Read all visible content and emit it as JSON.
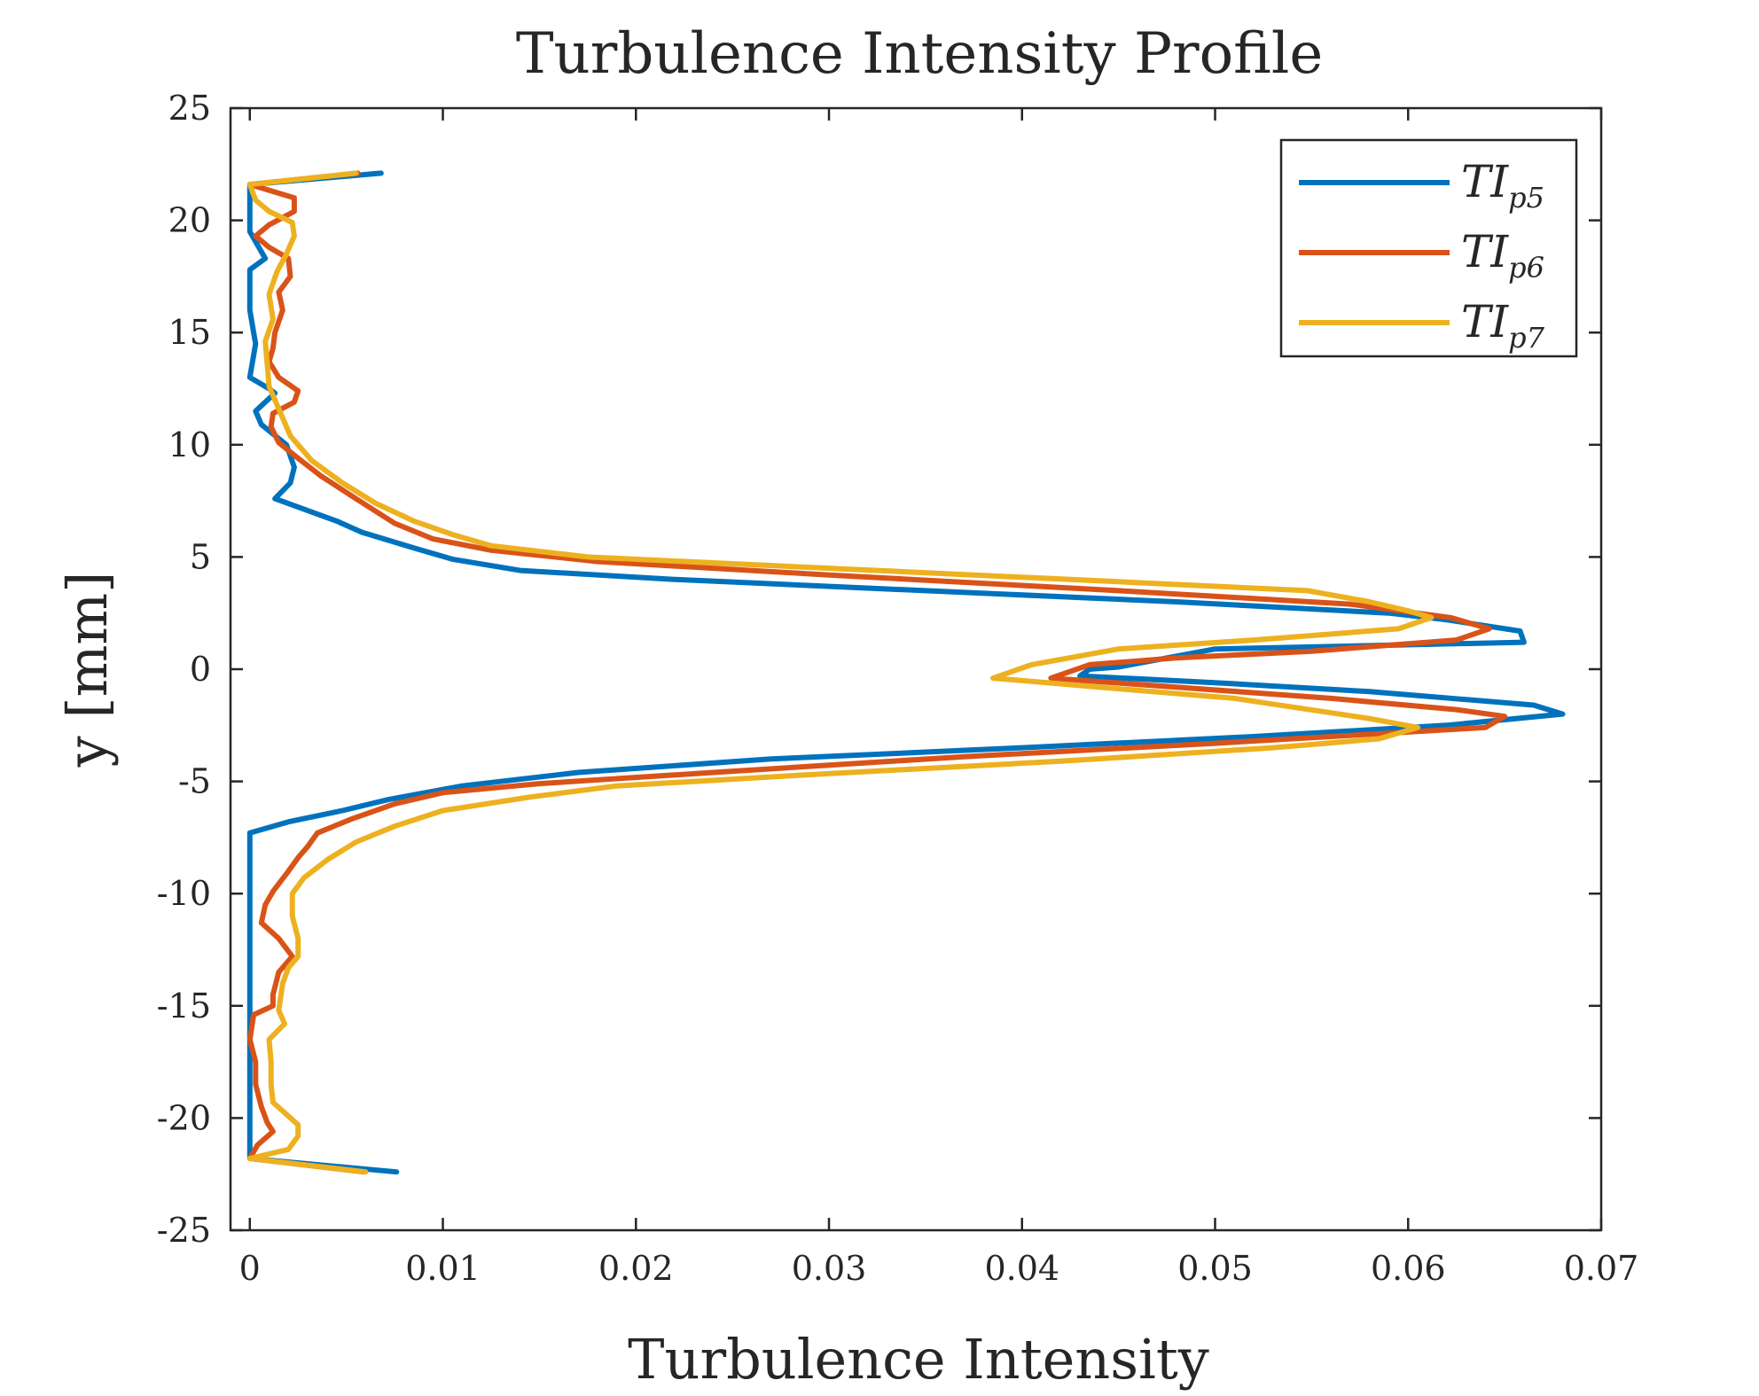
{
  "chart_data": {
    "type": "line",
    "title": "Turbulence Intensity Profile",
    "xlabel": "Turbulence Intensity",
    "ylabel": "y [mm]",
    "xlim": [
      -0.001,
      0.07
    ],
    "ylim": [
      -25,
      25
    ],
    "xticks": [
      0,
      0.01,
      0.02,
      0.03,
      0.04,
      0.05,
      0.06,
      0.07
    ],
    "xtick_labels": [
      "0",
      "0.01",
      "0.02",
      "0.03",
      "0.04",
      "0.05",
      "0.06",
      "0.07"
    ],
    "yticks": [
      25,
      20,
      15,
      10,
      5,
      0,
      -5,
      -10,
      -15,
      -20,
      -25
    ],
    "ytick_labels": [
      "25",
      "20",
      "15",
      "10",
      "5",
      "0",
      "-5",
      "-10",
      "-15",
      "-20",
      "-25"
    ],
    "grid": false,
    "legend_position": "top-right",
    "series": [
      {
        "name": "TI_p5",
        "label_main": "TI",
        "label_sub": "p5",
        "color": "#0072BD",
        "points": [
          [
            0.0068,
            22.1
          ],
          [
            0.0,
            21.6
          ],
          [
            0.0,
            19.5
          ],
          [
            0.0008,
            18.3
          ],
          [
            0.0,
            17.8
          ],
          [
            0.0,
            16.0
          ],
          [
            0.0002,
            15.0
          ],
          [
            0.0003,
            14.5
          ],
          [
            0.0,
            13.0
          ],
          [
            0.001,
            12.5
          ],
          [
            0.0013,
            12.3
          ],
          [
            0.0003,
            11.5
          ],
          [
            0.0006,
            10.9
          ],
          [
            0.0019,
            10.0
          ],
          [
            0.0023,
            9.0
          ],
          [
            0.0021,
            8.3
          ],
          [
            0.0013,
            7.6
          ],
          [
            0.0045,
            6.6
          ],
          [
            0.0058,
            6.1
          ],
          [
            0.0085,
            5.4
          ],
          [
            0.0105,
            4.9
          ],
          [
            0.014,
            4.4
          ],
          [
            0.022,
            4.0
          ],
          [
            0.035,
            3.5
          ],
          [
            0.048,
            3.0
          ],
          [
            0.059,
            2.5
          ],
          [
            0.062,
            2.2
          ],
          [
            0.0658,
            1.7
          ],
          [
            0.066,
            1.2
          ],
          [
            0.05,
            0.9
          ],
          [
            0.045,
            0.1
          ],
          [
            0.0435,
            0.0
          ],
          [
            0.043,
            -0.3
          ],
          [
            0.05,
            -0.6
          ],
          [
            0.058,
            -1.0
          ],
          [
            0.0665,
            -1.6
          ],
          [
            0.068,
            -2.0
          ],
          [
            0.062,
            -2.5
          ],
          [
            0.052,
            -3.0
          ],
          [
            0.04,
            -3.5
          ],
          [
            0.027,
            -4.0
          ],
          [
            0.017,
            -4.6
          ],
          [
            0.011,
            -5.2
          ],
          [
            0.0072,
            -5.8
          ],
          [
            0.0048,
            -6.3
          ],
          [
            0.002,
            -6.8
          ],
          [
            0.0,
            -7.3
          ],
          [
            0.0,
            -12.0
          ],
          [
            0.0,
            -18.0
          ],
          [
            0.0,
            -21.8
          ],
          [
            0.0076,
            -22.4
          ]
        ]
      },
      {
        "name": "TI_p6",
        "label_main": "TI",
        "label_sub": "p6",
        "color": "#D95319",
        "points": [
          [
            0.0056,
            22.1
          ],
          [
            0.0,
            21.6
          ],
          [
            0.0023,
            21.0
          ],
          [
            0.0023,
            20.4
          ],
          [
            0.001,
            19.8
          ],
          [
            0.0003,
            19.3
          ],
          [
            0.001,
            18.8
          ],
          [
            0.002,
            18.3
          ],
          [
            0.0021,
            17.5
          ],
          [
            0.0015,
            16.8
          ],
          [
            0.0017,
            16.0
          ],
          [
            0.0013,
            15.0
          ],
          [
            0.0012,
            14.3
          ],
          [
            0.001,
            13.7
          ],
          [
            0.0015,
            13.0
          ],
          [
            0.0025,
            12.4
          ],
          [
            0.0023,
            11.9
          ],
          [
            0.0012,
            11.4
          ],
          [
            0.0011,
            10.8
          ],
          [
            0.0015,
            10.1
          ],
          [
            0.0025,
            9.4
          ],
          [
            0.0037,
            8.6
          ],
          [
            0.0055,
            7.6
          ],
          [
            0.0075,
            6.5
          ],
          [
            0.0095,
            5.8
          ],
          [
            0.0125,
            5.3
          ],
          [
            0.018,
            4.8
          ],
          [
            0.03,
            4.2
          ],
          [
            0.045,
            3.5
          ],
          [
            0.057,
            2.9
          ],
          [
            0.0622,
            2.3
          ],
          [
            0.0642,
            1.8
          ],
          [
            0.0625,
            1.3
          ],
          [
            0.055,
            0.8
          ],
          [
            0.048,
            0.5
          ],
          [
            0.0435,
            0.2
          ],
          [
            0.0415,
            -0.4
          ],
          [
            0.048,
            -0.8
          ],
          [
            0.056,
            -1.3
          ],
          [
            0.0625,
            -1.8
          ],
          [
            0.065,
            -2.1
          ],
          [
            0.064,
            -2.6
          ],
          [
            0.05,
            -3.3
          ],
          [
            0.037,
            -3.9
          ],
          [
            0.024,
            -4.6
          ],
          [
            0.015,
            -5.1
          ],
          [
            0.01,
            -5.5
          ],
          [
            0.0075,
            -6.0
          ],
          [
            0.0052,
            -6.7
          ],
          [
            0.0035,
            -7.3
          ],
          [
            0.003,
            -7.9
          ],
          [
            0.0025,
            -8.4
          ],
          [
            0.002,
            -9.0
          ],
          [
            0.0012,
            -9.9
          ],
          [
            0.0008,
            -10.5
          ],
          [
            0.0006,
            -11.3
          ],
          [
            0.0015,
            -12.0
          ],
          [
            0.0022,
            -12.8
          ],
          [
            0.0015,
            -13.5
          ],
          [
            0.0012,
            -14.5
          ],
          [
            0.0012,
            -15.0
          ],
          [
            0.0002,
            -15.4
          ],
          [
            0.0,
            -16.5
          ],
          [
            0.0003,
            -17.5
          ],
          [
            0.0003,
            -18.5
          ],
          [
            0.0006,
            -19.5
          ],
          [
            0.0009,
            -20.2
          ],
          [
            0.0012,
            -20.6
          ],
          [
            0.0004,
            -21.2
          ],
          [
            0.0,
            -21.8
          ],
          [
            0.0059,
            -22.4
          ]
        ]
      },
      {
        "name": "TI_p7",
        "label_main": "TI",
        "label_sub": "p7",
        "color": "#EDB120",
        "points": [
          [
            0.0055,
            22.1
          ],
          [
            0.0,
            21.6
          ],
          [
            0.0003,
            20.9
          ],
          [
            0.001,
            20.4
          ],
          [
            0.0022,
            19.9
          ],
          [
            0.0023,
            19.3
          ],
          [
            0.0019,
            18.5
          ],
          [
            0.0014,
            17.7
          ],
          [
            0.001,
            16.7
          ],
          [
            0.0012,
            15.6
          ],
          [
            0.0008,
            14.6
          ],
          [
            0.0009,
            13.6
          ],
          [
            0.001,
            12.6
          ],
          [
            0.0015,
            11.6
          ],
          [
            0.0021,
            10.4
          ],
          [
            0.0032,
            9.3
          ],
          [
            0.0048,
            8.3
          ],
          [
            0.0065,
            7.4
          ],
          [
            0.0085,
            6.6
          ],
          [
            0.0105,
            6.0
          ],
          [
            0.0125,
            5.5
          ],
          [
            0.0175,
            5.0
          ],
          [
            0.03,
            4.5
          ],
          [
            0.045,
            3.9
          ],
          [
            0.0548,
            3.5
          ],
          [
            0.058,
            3.0
          ],
          [
            0.06,
            2.6
          ],
          [
            0.0612,
            2.3
          ],
          [
            0.0595,
            1.8
          ],
          [
            0.052,
            1.3
          ],
          [
            0.045,
            0.9
          ],
          [
            0.0405,
            0.2
          ],
          [
            0.0385,
            -0.4
          ],
          [
            0.044,
            -0.8
          ],
          [
            0.051,
            -1.3
          ],
          [
            0.058,
            -2.2
          ],
          [
            0.0605,
            -2.6
          ],
          [
            0.0585,
            -3.1
          ],
          [
            0.053,
            -3.5
          ],
          [
            0.042,
            -4.1
          ],
          [
            0.029,
            -4.7
          ],
          [
            0.019,
            -5.2
          ],
          [
            0.0145,
            -5.7
          ],
          [
            0.01,
            -6.3
          ],
          [
            0.0075,
            -7.0
          ],
          [
            0.0055,
            -7.7
          ],
          [
            0.004,
            -8.5
          ],
          [
            0.0028,
            -9.3
          ],
          [
            0.0022,
            -10.0
          ],
          [
            0.0022,
            -11.0
          ],
          [
            0.0025,
            -12.0
          ],
          [
            0.0025,
            -12.8
          ],
          [
            0.002,
            -13.3
          ],
          [
            0.0017,
            -14.0
          ],
          [
            0.0015,
            -15.2
          ],
          [
            0.0018,
            -15.8
          ],
          [
            0.001,
            -16.5
          ],
          [
            0.0011,
            -17.5
          ],
          [
            0.0011,
            -18.5
          ],
          [
            0.0012,
            -19.3
          ],
          [
            0.0025,
            -20.3
          ],
          [
            0.0025,
            -20.8
          ],
          [
            0.002,
            -21.4
          ],
          [
            0.0,
            -21.8
          ],
          [
            0.006,
            -22.4
          ]
        ]
      }
    ]
  }
}
